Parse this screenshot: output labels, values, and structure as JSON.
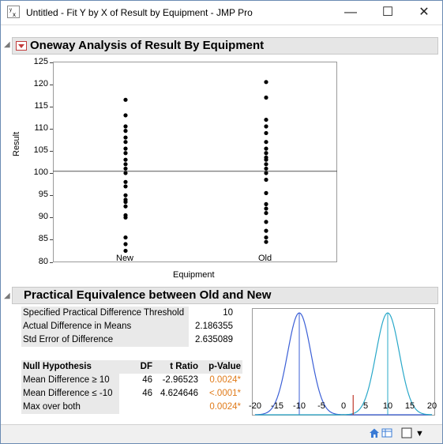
{
  "window": {
    "icon_text": "yₓ",
    "title": "Untitled - Fit Y by X of Result by Equipment - JMP Pro",
    "minimize_glyph": "—",
    "maximize_glyph": "☐",
    "close_glyph": "✕"
  },
  "oneway": {
    "title": "Oneway Analysis of Result By Equipment",
    "x_axis_label": "Equipment",
    "y_axis_label": "Result",
    "y_ticks": [
      "125",
      "120",
      "115",
      "110",
      "105",
      "100",
      "95",
      "90",
      "85",
      "80"
    ]
  },
  "chart_data": {
    "type": "scatter",
    "title": "Oneway Analysis of Result By Equipment",
    "xlabel": "Equipment",
    "ylabel": "Result",
    "categories": [
      "New",
      "Old"
    ],
    "ylim": [
      80,
      125
    ],
    "reference_line": 100.4,
    "series": [
      {
        "category": "New",
        "values": [
          116.5,
          113,
          110.5,
          109.5,
          108,
          107,
          105.5,
          104.5,
          103,
          102,
          101,
          100,
          98,
          97,
          95,
          94,
          93.5,
          92.5,
          90.5,
          90,
          85.5,
          84,
          82.5
        ]
      },
      {
        "category": "Old",
        "values": [
          120.5,
          117,
          112,
          110.5,
          109,
          107,
          105.5,
          104.5,
          103.5,
          103,
          102,
          101,
          100,
          98.5,
          95.5,
          93,
          92,
          91,
          89,
          87,
          85.5,
          84.5
        ]
      }
    ],
    "grid": false
  },
  "equivalence": {
    "title": "Practical Equivalence between Old and New",
    "stats": [
      {
        "label": "Specified Practical Difference Threshold",
        "value": "10"
      },
      {
        "label": "Actual Difference in Means",
        "value": "2.186355"
      },
      {
        "label": "Std Error of Difference",
        "value": "2.635089"
      }
    ],
    "table_headers": [
      "Null Hypothesis",
      "DF",
      "t Ratio",
      "p-Value"
    ],
    "rows": [
      {
        "hypothesis": "Mean Difference ≥ 10",
        "df": "46",
        "t": "-2.96523",
        "p": "0.0024*"
      },
      {
        "hypothesis": "Mean Difference ≤ -10",
        "df": "46",
        "t": "4.624646",
        "p": "<.0001*"
      },
      {
        "hypothesis": "Max over both",
        "df": "",
        "t": "",
        "p": "0.0024*"
      }
    ],
    "x_ticks": [
      "-20",
      "-15",
      "-10",
      "-5",
      "0",
      "5",
      "10",
      "15",
      "20"
    ],
    "curve_data": {
      "left_center": -10,
      "right_center": 10,
      "observed_difference": 2.186355,
      "sd": 2.635089,
      "xlim": [
        -20,
        20
      ]
    },
    "colors": {
      "left_curve": "#3b5fd6",
      "right_curve": "#29a8c9",
      "marker": "#c0392b"
    }
  },
  "statusbar": {
    "home_icon": "home-icon",
    "table_icon": "table-icon",
    "checkbox_icon": "checkbox-icon",
    "dropdown_glyph": "▼"
  }
}
